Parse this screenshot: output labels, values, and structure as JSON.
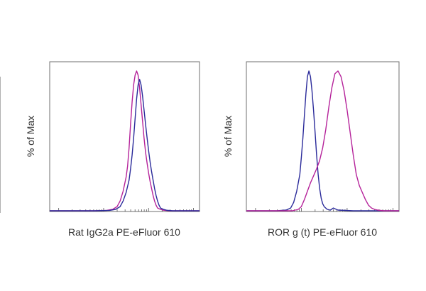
{
  "chart_data": [
    {
      "type": "line",
      "title": "",
      "xlabel": "Rat IgG2a PE-eFluor 610",
      "ylabel": "% of Max",
      "xlim": [
        0,
        100
      ],
      "ylim": [
        0,
        100
      ],
      "grid": false,
      "series": [
        {
          "color": "#b5229a",
          "x": [
            0,
            30,
            38,
            42,
            45,
            47,
            49,
            51,
            52,
            53,
            54,
            55,
            56,
            57,
            58,
            59,
            60,
            61,
            62,
            63,
            64,
            65,
            66,
            67,
            68,
            69,
            70,
            71,
            72,
            74,
            76,
            80,
            90,
            100
          ],
          "y": [
            0,
            0,
            0.3,
            1,
            3,
            7,
            14,
            24,
            32,
            45,
            62,
            78,
            90,
            97,
            100,
            97,
            88,
            76,
            64,
            52,
            42,
            34,
            27,
            21,
            16,
            11,
            7,
            4,
            2,
            1,
            0.4,
            0,
            0,
            0
          ]
        },
        {
          "color": "#2a2a9a",
          "x": [
            0,
            30,
            40,
            44,
            47,
            49,
            51,
            53,
            54,
            55,
            56,
            57,
            58,
            59,
            60,
            61,
            62,
            63,
            64,
            65,
            66,
            67,
            68,
            69,
            70,
            71,
            72,
            73,
            74,
            76,
            78,
            82,
            90,
            100
          ],
          "y": [
            0,
            0,
            0.3,
            1,
            3,
            7,
            13,
            22,
            30,
            40,
            52,
            66,
            80,
            90,
            94,
            90,
            82,
            72,
            62,
            52,
            43,
            35,
            28,
            22,
            16,
            11,
            7,
            4,
            2,
            1,
            0.4,
            0,
            0,
            0
          ]
        }
      ]
    },
    {
      "type": "line",
      "title": "",
      "xlabel": "ROR g (t) PE-eFluor 610",
      "ylabel": "% of Max",
      "xlim": [
        0,
        100
      ],
      "ylim": [
        0,
        100
      ],
      "grid": false,
      "series": [
        {
          "color": "#2a2a9a",
          "x": [
            0,
            20,
            26,
            29,
            31,
            33,
            35,
            36,
            37,
            38,
            39,
            40,
            41,
            42,
            43,
            44,
            45,
            46,
            47,
            48,
            49,
            50,
            51,
            52,
            53,
            55,
            57,
            60,
            70,
            100
          ],
          "y": [
            0,
            0,
            0.5,
            2,
            6,
            14,
            26,
            38,
            52,
            68,
            84,
            96,
            100,
            96,
            86,
            72,
            56,
            40,
            26,
            16,
            9,
            5,
            3,
            2,
            1,
            0.5,
            2,
            0.5,
            0,
            0
          ]
        },
        {
          "color": "#b5229a",
          "x": [
            0,
            30,
            34,
            36,
            38,
            40,
            42,
            44,
            46,
            48,
            50,
            52,
            54,
            56,
            58,
            60,
            62,
            64,
            66,
            68,
            70,
            72,
            74,
            76,
            78,
            80,
            82,
            84,
            86,
            90,
            100
          ],
          "y": [
            0,
            0,
            1,
            3,
            8,
            14,
            20,
            25,
            30,
            36,
            45,
            58,
            74,
            88,
            98,
            100,
            96,
            86,
            72,
            56,
            40,
            26,
            18,
            13,
            8,
            4,
            2,
            1,
            0.5,
            0,
            0
          ]
        }
      ]
    }
  ]
}
